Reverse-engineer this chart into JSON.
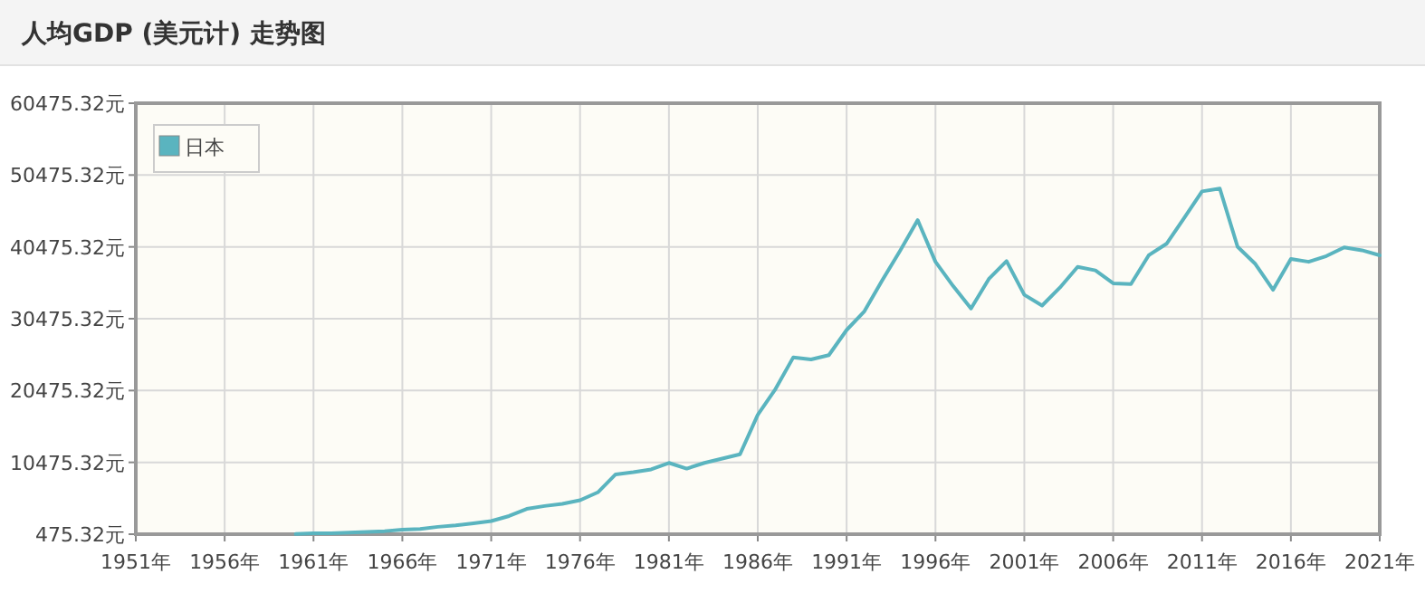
{
  "chart_data": {
    "type": "line",
    "title": "人均GDP (美元计) 走势图",
    "x": [
      1960,
      1961,
      1962,
      1963,
      1964,
      1965,
      1966,
      1967,
      1968,
      1969,
      1970,
      1971,
      1972,
      1973,
      1974,
      1975,
      1976,
      1977,
      1978,
      1979,
      1980,
      1981,
      1982,
      1983,
      1984,
      1985,
      1986,
      1987,
      1988,
      1989,
      1990,
      1991,
      1992,
      1993,
      1994,
      1995,
      1996,
      1997,
      1998,
      1999,
      2000,
      2001,
      2002,
      2003,
      2004,
      2005,
      2006,
      2007,
      2008,
      2009,
      2010,
      2011,
      2012,
      2013,
      2014,
      2015,
      2016,
      2017,
      2018,
      2019,
      2020,
      2021
    ],
    "series": [
      {
        "name": "日本",
        "color": "#5ab4bf",
        "values": [
          500,
          600,
          600,
          700,
          800,
          900,
          1100,
          1200,
          1500,
          1700,
          2000,
          2300,
          3000,
          4000,
          4400,
          4700,
          5200,
          6300,
          8800,
          9100,
          9500,
          10400,
          9600,
          10400,
          11000,
          11600,
          17100,
          20700,
          25100,
          24800,
          25400,
          28900,
          31500,
          35800,
          39900,
          44200,
          38400,
          35000,
          31900,
          36000,
          38500,
          33800,
          32300,
          34800,
          37700,
          37200,
          35400,
          35300,
          39300,
          40900,
          44500,
          48200,
          48600,
          40500,
          38100,
          34500,
          38800,
          38400,
          39200,
          40400,
          40000,
          39300
        ]
      }
    ],
    "xlim": [
      1951,
      2021
    ],
    "xticks": [
      {
        "value": 1951,
        "label": "1951年"
      },
      {
        "value": 1956,
        "label": "1956年"
      },
      {
        "value": 1961,
        "label": "1961年"
      },
      {
        "value": 1966,
        "label": "1966年"
      },
      {
        "value": 1971,
        "label": "1971年"
      },
      {
        "value": 1976,
        "label": "1976年"
      },
      {
        "value": 1981,
        "label": "1981年"
      },
      {
        "value": 1986,
        "label": "1986年"
      },
      {
        "value": 1991,
        "label": "1991年"
      },
      {
        "value": 1996,
        "label": "1996年"
      },
      {
        "value": 2001,
        "label": "2001年"
      },
      {
        "value": 2006,
        "label": "2006年"
      },
      {
        "value": 2011,
        "label": "2011年"
      },
      {
        "value": 2016,
        "label": "2016年"
      },
      {
        "value": 2021,
        "label": "2021年"
      }
    ],
    "ylim": [
      475.32,
      60475.32
    ],
    "yticks": [
      {
        "value": 475.32,
        "label": "475.32元"
      },
      {
        "value": 10475.32,
        "label": "10475.32元"
      },
      {
        "value": 20475.32,
        "label": "20475.32元"
      },
      {
        "value": 30475.32,
        "label": "30475.32元"
      },
      {
        "value": 40475.32,
        "label": "40475.32元"
      },
      {
        "value": 50475.32,
        "label": "50475.32元"
      },
      {
        "value": 60475.32,
        "label": "60475.32元"
      }
    ],
    "grid": true,
    "legend": "top left"
  }
}
